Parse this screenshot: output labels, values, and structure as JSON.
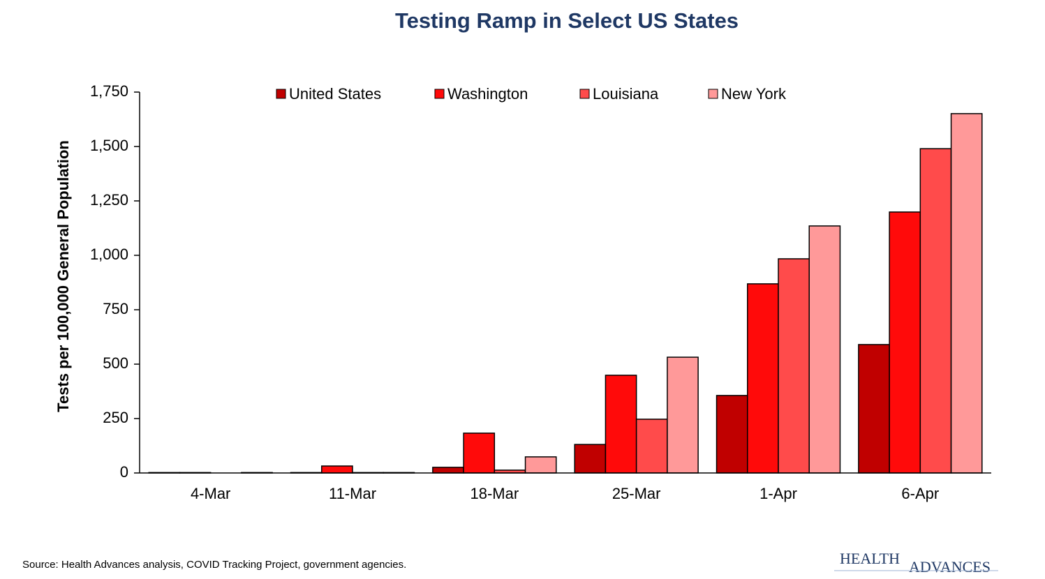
{
  "chart_data": {
    "type": "bar",
    "title": "Testing Ramp in Select US States",
    "y_label": "Tests per 100,000 General Population",
    "categories": [
      "4-Mar",
      "11-Mar",
      "18-Mar",
      "25-Mar",
      "1-Apr",
      "6-Apr"
    ],
    "series": [
      {
        "name": "United States",
        "color": "#c00000",
        "values": [
          2,
          2,
          26,
          131,
          356,
          590
        ]
      },
      {
        "name": "Washington",
        "color": "#ff0a0a",
        "values": [
          2,
          32,
          183,
          449,
          869,
          1199
        ]
      },
      {
        "name": "Louisiana",
        "color": "#ff4b4b",
        "values": [
          0,
          2,
          13,
          247,
          984,
          1490
        ]
      },
      {
        "name": "New York",
        "color": "#ff9999",
        "values": [
          2,
          2,
          74,
          532,
          1135,
          1651
        ]
      }
    ],
    "ylim": [
      0,
      1750
    ],
    "yticks": [
      0,
      250,
      500,
      750,
      {
        "value": 1000,
        "label": "1,000"
      },
      {
        "value": 1250,
        "label": "1,250"
      },
      {
        "value": 1500,
        "label": "1,500"
      },
      {
        "value": 1750,
        "label": "1,750"
      }
    ],
    "legend": "top",
    "source": "Source:  Health Advances analysis, COVID Tracking Project, government agencies.",
    "logo": [
      "HEALTH",
      "ADVANCES"
    ]
  }
}
